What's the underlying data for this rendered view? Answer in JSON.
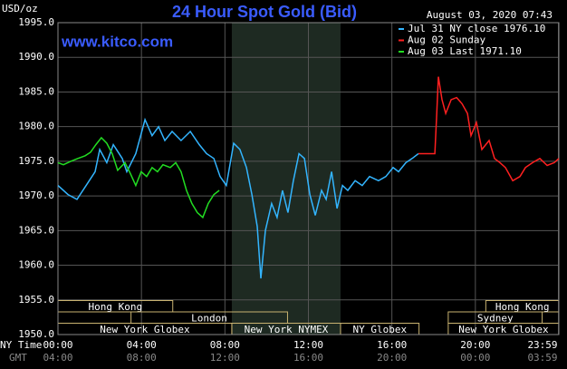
{
  "chart_data": {
    "type": "line",
    "title": "24 Hour Spot Gold (Bid)",
    "unit_label": "USD/oz",
    "timestamp": "August 03, 2020 07:43",
    "watermark": "www.kitco.com",
    "x_axis_label": "NY Time",
    "x2_axis_label": "GMT",
    "xlim": [
      0,
      24
    ],
    "ylim": [
      1950,
      1995
    ],
    "grid": true,
    "legend": "top-right",
    "yticks": [
      {
        "value": 1950,
        "label": "1950.0"
      },
      {
        "value": 1955,
        "label": "1955.0"
      },
      {
        "value": 1960,
        "label": "1960.0"
      },
      {
        "value": 1965,
        "label": "1965.0"
      },
      {
        "value": 1970,
        "label": "1970.0"
      },
      {
        "value": 1975,
        "label": "1975.0"
      },
      {
        "value": 1980,
        "label": "1980.0"
      },
      {
        "value": 1985,
        "label": "1985.0"
      },
      {
        "value": 1990,
        "label": "1990.0"
      },
      {
        "value": 1995,
        "label": "1995.0"
      }
    ],
    "xticks": [
      {
        "value": 0,
        "label": "00:00"
      },
      {
        "value": 4,
        "label": "04:00"
      },
      {
        "value": 8,
        "label": "08:00"
      },
      {
        "value": 12,
        "label": "12:00"
      },
      {
        "value": 16,
        "label": "16:00"
      },
      {
        "value": 20,
        "label": "20:00"
      },
      {
        "value": 23.98,
        "label": "23:59"
      }
    ],
    "x2ticks": [
      {
        "value": 0,
        "label": "04:00"
      },
      {
        "value": 4,
        "label": "08:00"
      },
      {
        "value": 8,
        "label": "12:00"
      },
      {
        "value": 12,
        "label": "16:00"
      },
      {
        "value": 16,
        "label": "20:00"
      },
      {
        "value": 20,
        "label": "00:00"
      },
      {
        "value": 23.98,
        "label": "03:59"
      }
    ],
    "shaded_region": [
      8.33,
      13.54
    ],
    "sessions": [
      [
        {
          "label": "Hong Kong",
          "start": 0,
          "end": 5.5
        },
        {
          "label": "Hong Kong",
          "start": 20.5,
          "end": 24
        }
      ],
      [
        {
          "label": "London",
          "start": 3.5,
          "end": 11
        },
        {
          "label": "Sydney",
          "start": 18.7,
          "end": 23.2
        }
      ],
      [
        {
          "label": "New York Globex",
          "start": 0,
          "end": 8.33
        },
        {
          "label": "New York NYMEX",
          "start": 8.33,
          "end": 13.54
        },
        {
          "label": "NY Globex",
          "start": 13.54,
          "end": 17.3
        },
        {
          "label": "New York Globex",
          "start": 18.7,
          "end": 24
        }
      ]
    ],
    "series": [
      {
        "name": "Jul 31 NY close 1976.10",
        "color": "#33b5ff",
        "x": [
          0,
          0.48,
          0.91,
          1.35,
          1.78,
          2.0,
          2.34,
          2.65,
          3.08,
          3.3,
          3.73,
          4.17,
          4.51,
          4.82,
          5.12,
          5.47,
          5.9,
          6.34,
          6.77,
          7.12,
          7.47,
          7.77,
          8.07,
          8.42,
          8.72,
          9.03,
          9.29,
          9.55,
          9.72,
          9.94,
          10.24,
          10.5,
          10.76,
          11.02,
          11.28,
          11.55,
          11.81,
          12.07,
          12.33,
          12.63,
          12.85,
          13.11,
          13.37,
          13.63,
          13.89,
          14.24,
          14.58,
          14.93,
          15.36,
          15.71,
          16.06,
          16.32,
          16.67,
          16.97,
          17.27
        ],
        "values": [
          1971.5,
          1970.2,
          1969.5,
          1971.5,
          1973.5,
          1976.7,
          1974.8,
          1977.4,
          1975.4,
          1973.5,
          1976.1,
          1981.0,
          1978.7,
          1980.0,
          1978.0,
          1979.3,
          1978.0,
          1979.3,
          1977.4,
          1976.1,
          1975.4,
          1972.8,
          1971.5,
          1977.6,
          1976.7,
          1974.1,
          1970.2,
          1965.6,
          1958.1,
          1965.0,
          1968.9,
          1966.9,
          1970.8,
          1967.6,
          1972.2,
          1976.1,
          1975.4,
          1970.2,
          1967.2,
          1970.8,
          1969.5,
          1973.5,
          1968.2,
          1971.5,
          1970.8,
          1972.2,
          1971.5,
          1972.8,
          1972.2,
          1972.8,
          1974.1,
          1973.5,
          1974.8,
          1975.4,
          1976.1
        ]
      },
      {
        "name": "Aug 02 Sunday",
        "color": "#ff2020",
        "x": [
          17.27,
          18.06,
          18.14,
          18.23,
          18.4,
          18.58,
          18.84,
          19.1,
          19.36,
          19.62,
          19.79,
          20.05,
          20.31,
          20.66,
          20.92,
          21.18,
          21.44,
          21.79,
          22.14,
          22.4,
          22.74,
          23.09,
          23.44,
          23.78,
          24.0
        ],
        "values": [
          1976.1,
          1976.1,
          1981.3,
          1987.2,
          1983.9,
          1981.9,
          1983.9,
          1984.2,
          1983.3,
          1981.9,
          1978.7,
          1980.6,
          1976.7,
          1978.0,
          1975.4,
          1974.8,
          1974.1,
          1972.2,
          1972.8,
          1974.1,
          1974.8,
          1975.4,
          1974.4,
          1974.8,
          1975.4
        ]
      },
      {
        "name": "Aug 03 Last 1971.10",
        "color": "#22dd22",
        "x": [
          0,
          0.26,
          0.61,
          0.95,
          1.3,
          1.56,
          1.82,
          2.08,
          2.34,
          2.6,
          2.86,
          3.21,
          3.47,
          3.73,
          3.99,
          4.25,
          4.51,
          4.77,
          5.03,
          5.38,
          5.64,
          5.9,
          6.16,
          6.42,
          6.68,
          6.94,
          7.2,
          7.47,
          7.73
        ],
        "values": [
          1974.8,
          1974.5,
          1975.0,
          1975.4,
          1975.8,
          1976.3,
          1977.4,
          1978.4,
          1977.6,
          1976.1,
          1973.7,
          1974.8,
          1973.2,
          1971.5,
          1973.5,
          1972.8,
          1974.1,
          1973.5,
          1974.5,
          1974.1,
          1974.8,
          1973.5,
          1970.8,
          1968.9,
          1967.6,
          1966.9,
          1968.9,
          1970.2,
          1970.8
        ]
      }
    ]
  }
}
